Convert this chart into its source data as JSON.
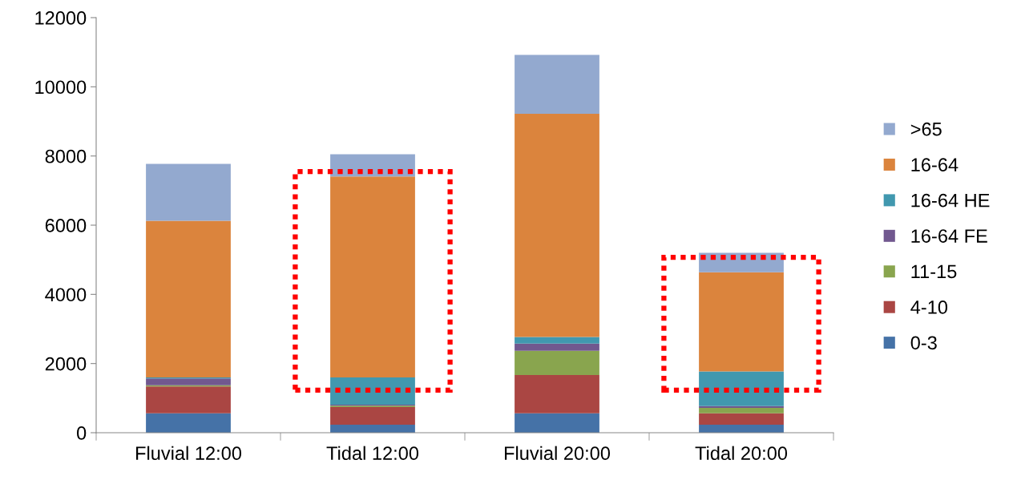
{
  "chart_data": {
    "type": "bar",
    "stacked": true,
    "categories": [
      "Fluvial 12:00",
      "Tidal 12:00",
      "Fluvial 20:00",
      "Tidal 20:00"
    ],
    "series": [
      {
        "name": "0-3",
        "color": "#4572a7",
        "values": [
          560,
          230,
          560,
          230
        ]
      },
      {
        "name": "4-10",
        "color": "#aa4643",
        "values": [
          780,
          510,
          1110,
          330
        ]
      },
      {
        "name": "11-15",
        "color": "#89a54e",
        "values": [
          30,
          40,
          700,
          160
        ]
      },
      {
        "name": "16-64 FE",
        "color": "#71588f",
        "values": [
          200,
          30,
          210,
          50
        ]
      },
      {
        "name": "16-64 HE",
        "color": "#4198af",
        "values": [
          30,
          790,
          190,
          1000
        ]
      },
      {
        "name": "16-64",
        "color": "#db843d",
        "values": [
          4530,
          5810,
          6450,
          2870
        ]
      },
      {
        "name": ">65",
        "color": "#93a9cf",
        "values": [
          1640,
          640,
          1700,
          560
        ]
      }
    ],
    "ylim": [
      0,
      12000
    ],
    "yticks": [
      0,
      2000,
      4000,
      6000,
      8000,
      10000,
      12000
    ],
    "grid": false,
    "legend": "right"
  }
}
